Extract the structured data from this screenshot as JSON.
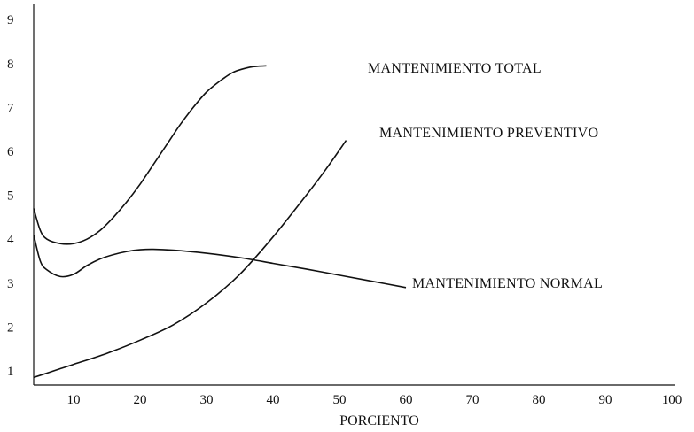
{
  "chart_data": {
    "type": "line",
    "title": "",
    "xlabel": "PORCIENTO",
    "ylabel": "",
    "xlim": [
      4,
      100
    ],
    "ylim": [
      0.8,
      9.8
    ],
    "x_ticks": [
      10,
      20,
      30,
      40,
      50,
      60,
      70,
      80,
      90,
      100
    ],
    "y_ticks": [
      1,
      2,
      3,
      4,
      5,
      6,
      7,
      8,
      9
    ],
    "grid": false,
    "legend": "labels-at-curve-ends",
    "series": [
      {
        "name": "MANTENIMIENTO TOTAL",
        "x": [
          4,
          5,
          6,
          8,
          10,
          12,
          14,
          16,
          18,
          20,
          22,
          24,
          26,
          28,
          30,
          32,
          34,
          36,
          37,
          39
        ],
        "y": [
          4.7,
          4.2,
          4.0,
          3.9,
          3.9,
          4.0,
          4.2,
          4.5,
          4.85,
          5.25,
          5.7,
          6.15,
          6.6,
          7.0,
          7.35,
          7.6,
          7.8,
          7.9,
          7.93,
          7.95
        ]
      },
      {
        "name": "MANTENIMIENTO NORMAL",
        "x": [
          4,
          5,
          6,
          8,
          10,
          12,
          14,
          16,
          18,
          20,
          22,
          25,
          30,
          35,
          40,
          45,
          50,
          55,
          60
        ],
        "y": [
          4.1,
          3.5,
          3.3,
          3.15,
          3.2,
          3.4,
          3.55,
          3.65,
          3.72,
          3.76,
          3.77,
          3.75,
          3.68,
          3.58,
          3.45,
          3.32,
          3.18,
          3.04,
          2.9
        ]
      },
      {
        "name": "MANTENIMIENTO PREVENTIVO",
        "x": [
          4,
          6,
          8,
          10,
          15,
          20,
          25,
          30,
          35,
          40,
          45,
          48,
          51
        ],
        "y": [
          0.85,
          0.95,
          1.05,
          1.15,
          1.4,
          1.7,
          2.05,
          2.55,
          3.2,
          4.05,
          5.0,
          5.6,
          6.25
        ]
      }
    ]
  }
}
